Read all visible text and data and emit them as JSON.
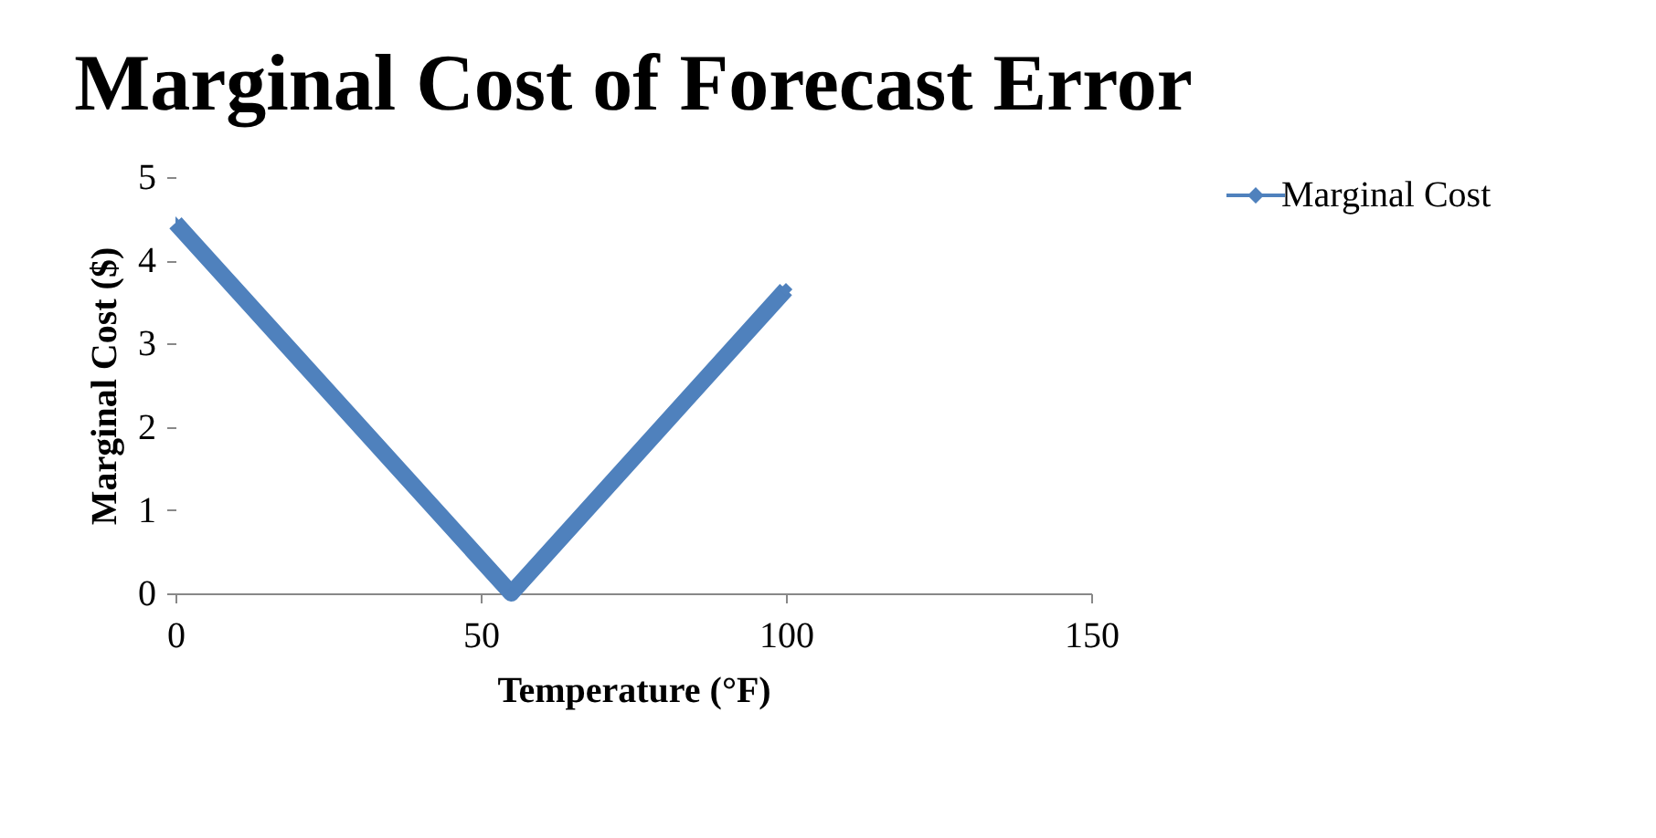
{
  "chart_data": {
    "type": "line",
    "title": "Marginal Cost of Forecast Error",
    "xlabel": "Temperature (°F)",
    "ylabel": "Marginal Cost ($)",
    "x": [
      0,
      55,
      100
    ],
    "series": [
      {
        "name": "Marginal Cost",
        "color": "#4f81bd",
        "values": [
          4.45,
          0,
          3.65
        ]
      }
    ],
    "xlim": [
      0,
      150
    ],
    "xticks": [
      0,
      50,
      100,
      150
    ],
    "ylim": [
      0,
      5
    ],
    "yticks": [
      0,
      1,
      2,
      3,
      4,
      5
    ],
    "grid": false,
    "legend": "right",
    "marker": "diamond",
    "line_style": "solid"
  }
}
